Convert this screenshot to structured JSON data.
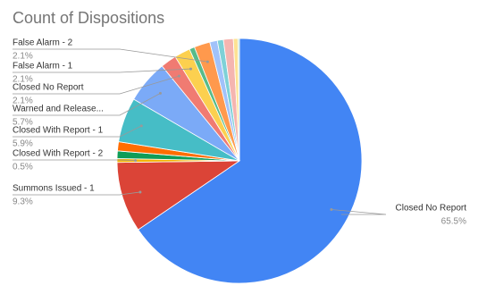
{
  "chart_data": {
    "type": "pie",
    "title": "Count of Dispositions",
    "categories": [
      "Closed No Report",
      "Summons Issued - 1",
      "Closed With Report - 2",
      null,
      null,
      "Closed With Report - 1",
      "Warned and Release...",
      "Closed No Report",
      "False Alarm - 1",
      null,
      "False Alarm - 2",
      null,
      null,
      null,
      null,
      null
    ],
    "values": [
      65.5,
      9.3,
      0.5,
      1.0,
      1.2,
      5.9,
      5.7,
      2.1,
      2.1,
      0.7,
      2.1,
      1.0,
      0.8,
      1.3,
      0.6,
      0.2
    ],
    "value_labels": [
      "65.5%",
      "9.3%",
      "0.5%",
      null,
      null,
      "5.9%",
      "5.7%",
      "2.1%",
      "2.1%",
      null,
      "2.1%",
      null,
      null,
      null,
      null,
      null
    ],
    "colors": [
      "#4285f4",
      "#db4437",
      "#f4b400",
      "#0f9d58",
      "#ff6d00",
      "#46bdc6",
      "#7baaf7",
      "#f07b72",
      "#fcd04f",
      "#57bb8a",
      "#ff994d",
      "#a1c2fa",
      "#7ed1d7",
      "#f5b5b0",
      "#fde293",
      "#b7e1cd"
    ]
  }
}
